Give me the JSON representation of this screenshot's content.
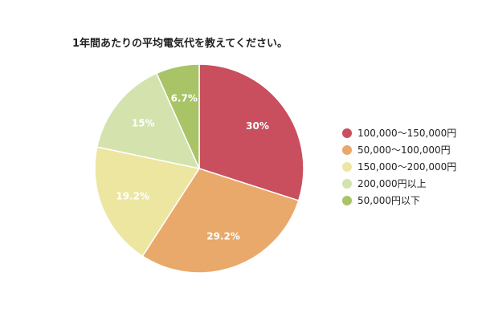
{
  "chart_data": {
    "type": "pie",
    "title": "1年間あたりの平均電気代を教えてください。",
    "categories": [
      "100,000～150,000円",
      "50,000～100,000円",
      "150,000～200,000円",
      "200,000円以上",
      "50,000円以下"
    ],
    "values": [
      30,
      29.2,
      19.2,
      15,
      6.7
    ],
    "data_labels": [
      "30%",
      "29.2%",
      "19.2%",
      "15%",
      "6.7%"
    ],
    "colors": [
      "#c94f5e",
      "#e8a96a",
      "#ede6a1",
      "#d4e2ae",
      "#a8c467"
    ],
    "legend_placement": "right",
    "grid": false
  }
}
